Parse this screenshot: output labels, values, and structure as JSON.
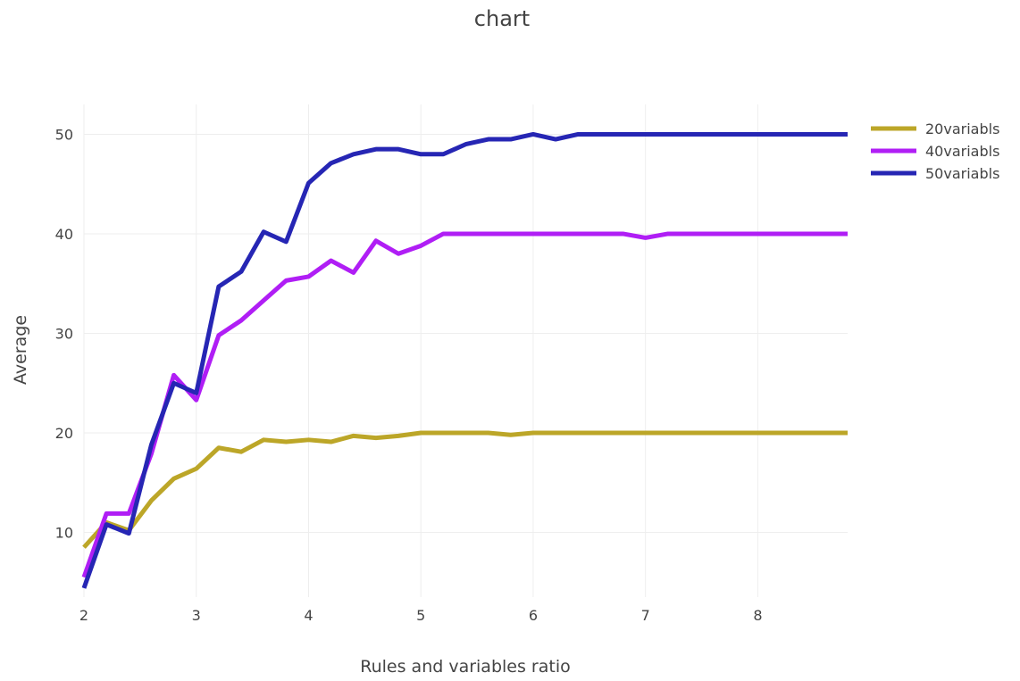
{
  "chart_data": {
    "type": "line",
    "title": "chart",
    "xlabel": "Rules and variables ratio",
    "ylabel": "Average",
    "xlim": [
      2,
      8.8
    ],
    "ylim": [
      3.5,
      53
    ],
    "xticks": [
      2,
      3,
      4,
      5,
      6,
      7,
      8
    ],
    "yticks": [
      10,
      20,
      30,
      40,
      50
    ],
    "grid": true,
    "legend_position": "top-right",
    "x": [
      2.0,
      2.2,
      2.4,
      2.6,
      2.8,
      3.0,
      3.2,
      3.4,
      3.6,
      3.8,
      4.0,
      4.2,
      4.4,
      4.6,
      4.8,
      5.0,
      5.2,
      5.4,
      5.6,
      5.8,
      6.0,
      6.2,
      6.4,
      6.6,
      6.8,
      7.0,
      7.2,
      7.4,
      7.6,
      7.8,
      8.0,
      8.2,
      8.4,
      8.6,
      8.8
    ],
    "series": [
      {
        "name": "20variabls",
        "color": "#bca628",
        "values": [
          8.5,
          11.0,
          10.2,
          13.2,
          15.4,
          16.4,
          18.5,
          18.1,
          19.3,
          19.1,
          19.3,
          19.1,
          19.7,
          19.5,
          19.7,
          20.0,
          20.0,
          20.0,
          20.0,
          19.8,
          20.0,
          20.0,
          20.0,
          20.0,
          20.0,
          20.0,
          20.0,
          20.0,
          20.0,
          20.0,
          20.0,
          20.0,
          20.0,
          20.0,
          20.0
        ]
      },
      {
        "name": "40variabls",
        "color": "#b01ef5",
        "values": [
          5.5,
          11.9,
          11.9,
          17.9,
          25.8,
          23.3,
          29.8,
          31.3,
          33.3,
          35.3,
          35.7,
          37.3,
          36.1,
          39.3,
          38.0,
          38.8,
          40.0,
          40.0,
          40.0,
          40.0,
          40.0,
          40.0,
          40.0,
          40.0,
          40.0,
          39.6,
          40.0,
          40.0,
          40.0,
          40.0,
          40.0,
          40.0,
          40.0,
          40.0,
          40.0
        ]
      },
      {
        "name": "50variabls",
        "color": "#2626b4",
        "values": [
          4.4,
          10.8,
          9.9,
          18.8,
          25.0,
          24.0,
          34.7,
          36.2,
          40.2,
          39.2,
          45.1,
          47.1,
          48.0,
          48.5,
          48.5,
          48.0,
          48.0,
          49.0,
          49.5,
          49.5,
          50.0,
          49.5,
          50.0,
          50.0,
          50.0,
          50.0,
          50.0,
          50.0,
          50.0,
          50.0,
          50.0,
          50.0,
          50.0,
          50.0,
          50.0
        ]
      }
    ]
  }
}
